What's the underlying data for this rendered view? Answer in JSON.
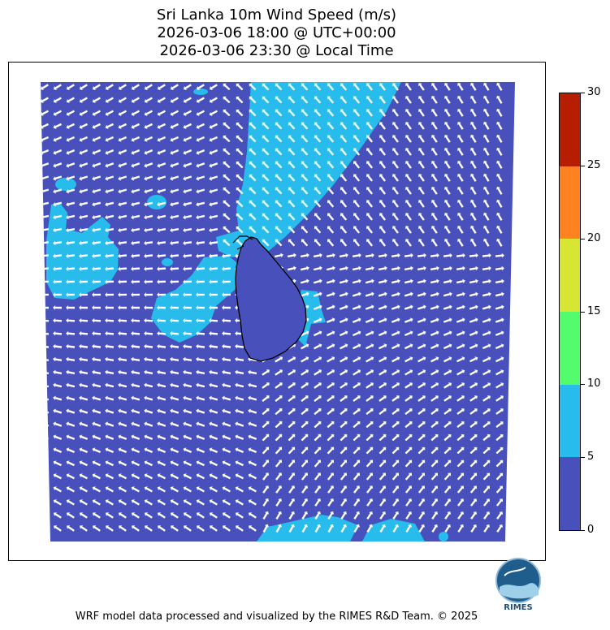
{
  "title": {
    "line1": "Sri Lanka 10m Wind Speed (m/s)",
    "line2": "2026-03-06 18:00 @ UTC+00:00",
    "line3": "2026-03-06 23:30 @ Local Time"
  },
  "colors": {
    "calm": "#4850bc",
    "band_5_10": "#27bceb",
    "band_10_15": "#52fc6c",
    "band_15_20": "#d7e533",
    "band_20_25": "#ff8221",
    "band_25_30": "#b71e01",
    "arrow": "#ffffff",
    "coastline": "#000000"
  },
  "colorbar": {
    "unit": "m/s",
    "ticks": [
      "0",
      "5",
      "10",
      "15",
      "20",
      "25",
      "30"
    ],
    "bands": [
      {
        "min": 0,
        "max": 5,
        "color": "#4850bc"
      },
      {
        "min": 5,
        "max": 10,
        "color": "#27bceb"
      },
      {
        "min": 10,
        "max": 15,
        "color": "#52fc6c"
      },
      {
        "min": 15,
        "max": 20,
        "color": "#d7e533"
      },
      {
        "min": 20,
        "max": 25,
        "color": "#ff8221"
      },
      {
        "min": 25,
        "max": 30,
        "color": "#b71e01"
      }
    ]
  },
  "map": {
    "region": "Sri Lanka",
    "field": "10m wind speed with direction arrows",
    "logo_text": "RIMES"
  },
  "footer": "WRF model data processed and visualized by the RIMES R&D Team. © 2025"
}
